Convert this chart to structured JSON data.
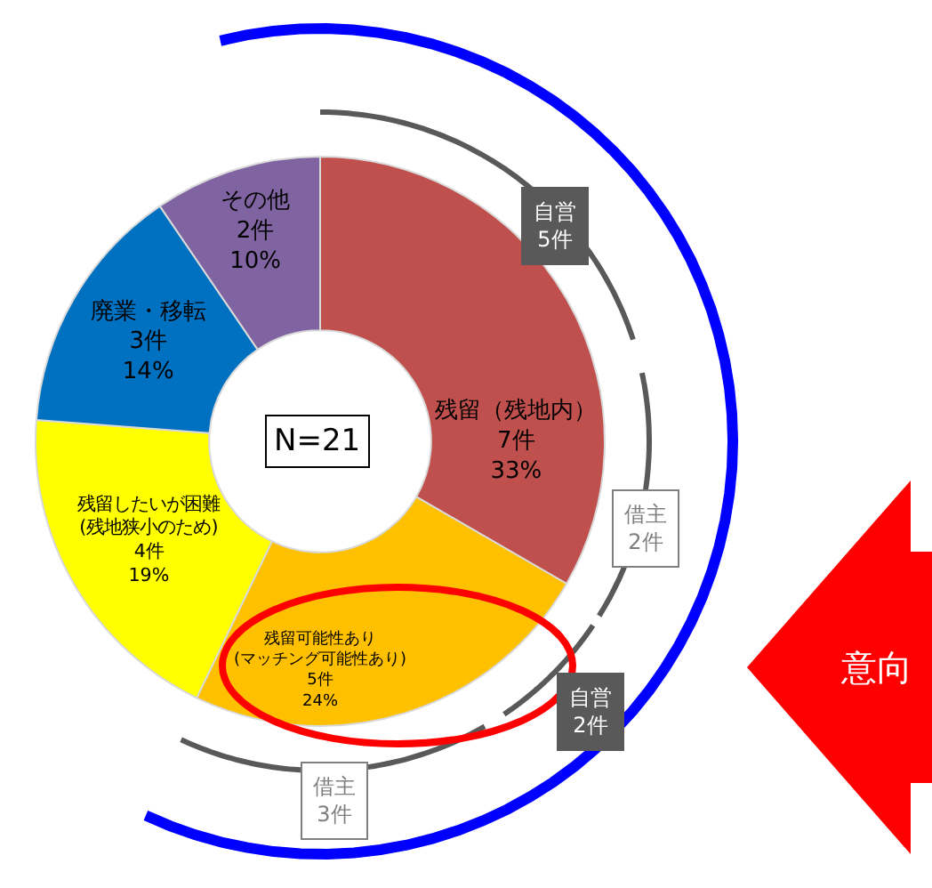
{
  "chart_data": {
    "type": "donut",
    "categories": [
      "残留（残地内）",
      "残留可能性あり\n(マッチング可能性あり)",
      "残留したいが困難\n(残地狭小のため)",
      "廃業・移転",
      "その他"
    ],
    "values": [
      7,
      5,
      4,
      3,
      2
    ],
    "value_labels": [
      "7件\n33%",
      "5件\n24%",
      "4件\n19%",
      "3件\n14%",
      "2件\n10%"
    ],
    "colors": [
      "#c0504d",
      "#ffc000",
      "#ffff00",
      "#0070c0",
      "#8064a2"
    ],
    "annotations": [
      "N=21",
      "自営\n5件",
      "借主\n2件",
      "自営\n2件",
      "借主\n3件",
      "意向"
    ],
    "legend": false
  }
}
